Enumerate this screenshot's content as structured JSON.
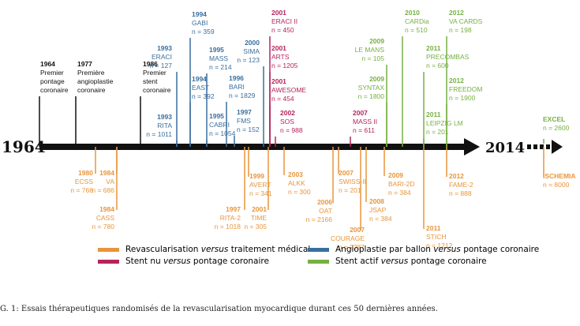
{
  "colors": {
    "orange": "#e8953a",
    "red": "#b5245c",
    "blue": "#3a6e9e",
    "green": "#76b043",
    "black": "#111111"
  },
  "axis": {
    "start": "1964",
    "end": "2014"
  },
  "events": [
    {
      "color": "black",
      "lines": [
        "1964",
        "Premier",
        "pontage",
        "coronaire"
      ]
    },
    {
      "color": "black",
      "lines": [
        "1977",
        "Première",
        "angioplastie",
        "coronaire"
      ]
    },
    {
      "color": "black",
      "lines": [
        "1986",
        "Premier",
        "stent",
        "coronaire"
      ]
    },
    {
      "color": "blue",
      "lines": [
        "1993",
        "ERACI",
        "n = 127"
      ]
    },
    {
      "color": "blue",
      "lines": [
        "1993",
        "RITA",
        "n = 1011"
      ]
    },
    {
      "color": "blue",
      "lines": [
        "1994",
        "GABI",
        "n = 359"
      ]
    },
    {
      "color": "blue",
      "lines": [
        "1994",
        "EAST",
        "n = 392"
      ]
    },
    {
      "color": "blue",
      "lines": [
        "1995",
        "MASS",
        "n = 214"
      ]
    },
    {
      "color": "blue",
      "lines": [
        "1995",
        "CABRI",
        "n = 1054"
      ]
    },
    {
      "color": "blue",
      "lines": [
        "1996",
        "BARI",
        "n = 1829"
      ]
    },
    {
      "color": "blue",
      "lines": [
        "1997",
        "FMS",
        "n = 152"
      ]
    },
    {
      "color": "blue",
      "lines": [
        "2000",
        "SIMA",
        "n = 123"
      ]
    },
    {
      "color": "red",
      "lines": [
        "2001",
        "ERACI II",
        "n = 450"
      ]
    },
    {
      "color": "red",
      "lines": [
        "2001",
        "ARTS",
        "n = 1205"
      ]
    },
    {
      "color": "red",
      "lines": [
        "2001",
        "AWESOME",
        "n = 454"
      ]
    },
    {
      "color": "red",
      "lines": [
        "2002",
        "SOS",
        "n = 988"
      ]
    },
    {
      "color": "red",
      "lines": [
        "2007",
        "MASS II",
        "n = 611"
      ]
    },
    {
      "color": "green",
      "lines": [
        "2009",
        "LE MANS",
        "n = 105"
      ]
    },
    {
      "color": "green",
      "lines": [
        "2009",
        "SYNTAX",
        "n = 1800"
      ]
    },
    {
      "color": "green",
      "lines": [
        "2010",
        "CARDia",
        "n = 510"
      ]
    },
    {
      "color": "green",
      "lines": [
        "2011",
        "PRECOMBAS",
        "n = 600"
      ]
    },
    {
      "color": "green",
      "lines": [
        "2011",
        "LEIPZIG LM",
        "n = 201"
      ]
    },
    {
      "color": "green",
      "lines": [
        "2012",
        "VA CARDS",
        "n = 198"
      ]
    },
    {
      "color": "green",
      "lines": [
        "2012",
        "FREEDOM",
        "n = 1900"
      ]
    },
    {
      "color": "green",
      "lines": [
        "EXCEL",
        "n = 2600"
      ]
    },
    {
      "color": "orange",
      "lines": [
        "1980",
        "ECSS",
        "n = 768"
      ]
    },
    {
      "color": "orange",
      "lines": [
        "1984",
        "VA",
        "n = 686"
      ]
    },
    {
      "color": "orange",
      "lines": [
        "1984",
        "CASS",
        "n = 780"
      ]
    },
    {
      "color": "orange",
      "lines": [
        "1997",
        "RITA-2",
        "n = 1018"
      ]
    },
    {
      "color": "orange",
      "lines": [
        "1999",
        "AVERT",
        "n = 341"
      ]
    },
    {
      "color": "orange",
      "lines": [
        "2001",
        "TIME",
        "n = 305"
      ]
    },
    {
      "color": "orange",
      "lines": [
        "2003",
        "ALKK",
        "n = 300"
      ]
    },
    {
      "color": "orange",
      "lines": [
        "2006",
        "OAT",
        "n = 2166"
      ]
    },
    {
      "color": "orange",
      "lines": [
        "2007",
        "SWISS-II",
        "n = 201"
      ]
    },
    {
      "color": "orange",
      "lines": [
        "2007",
        "COURAGE",
        "n = 2287"
      ]
    },
    {
      "color": "orange",
      "lines": [
        "2008",
        "JSAP",
        "n = 384"
      ]
    },
    {
      "color": "orange",
      "lines": [
        "2009",
        "BARI-2D",
        "n = 384"
      ]
    },
    {
      "color": "orange",
      "lines": [
        "2011",
        "STICH",
        "n = 1212"
      ]
    },
    {
      "color": "orange",
      "lines": [
        "2012",
        "FAME-2",
        "n = 888"
      ]
    },
    {
      "color": "orange",
      "lines": [
        "ISCHEMIA",
        "n = 8000"
      ]
    }
  ],
  "legend": [
    {
      "color": "orange",
      "pre": "Revascularisation ",
      "em": "versus",
      "post": " traitement médical"
    },
    {
      "color": "red",
      "pre": "Stent nu ",
      "em": "versus",
      "post": " pontage coronaire"
    },
    {
      "color": "blue",
      "pre": "Angioplastie par ballon ",
      "em": "versus",
      "post": " pontage coronaire"
    },
    {
      "color": "green",
      "pre": "Stent actif ",
      "em": "versus",
      "post": " pontage coronaire"
    }
  ],
  "caption": "G. 1: Essais thérapeutiques randomisés de la revascularisation myocardique durant ces 50 dernières années."
}
